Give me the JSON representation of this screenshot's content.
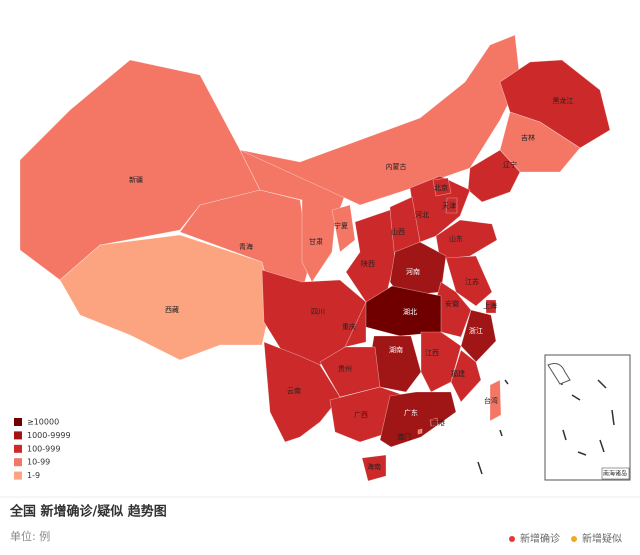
{
  "map": {
    "regions": [
      {
        "name": "新疆",
        "color": "#f47766"
      },
      {
        "name": "西藏",
        "color": "#fba47f"
      },
      {
        "name": "青海",
        "color": "#f47766"
      },
      {
        "name": "甘肃",
        "color": "#f47766"
      },
      {
        "name": "内蒙古",
        "color": "#f47766"
      },
      {
        "name": "黑龙江",
        "color": "#cc2a2a"
      },
      {
        "name": "吉林",
        "color": "#f47766"
      },
      {
        "name": "辽宁",
        "color": "#cc2a2a"
      },
      {
        "name": "河北",
        "color": "#cc2a2a"
      },
      {
        "name": "北京",
        "color": "#cc2a2a"
      },
      {
        "name": "天津",
        "color": "#cc2a2a"
      },
      {
        "name": "山西",
        "color": "#cc2a2a"
      },
      {
        "name": "山东",
        "color": "#cc2a2a"
      },
      {
        "name": "陕西",
        "color": "#cc2a2a"
      },
      {
        "name": "宁夏",
        "color": "#f47766"
      },
      {
        "name": "河南",
        "color": "#a01515"
      },
      {
        "name": "江苏",
        "color": "#cc2a2a"
      },
      {
        "name": "上海",
        "color": "#cc2a2a"
      },
      {
        "name": "安徽",
        "color": "#cc2a2a"
      },
      {
        "name": "湖北",
        "color": "#700000"
      },
      {
        "name": "重庆",
        "color": "#cc2a2a"
      },
      {
        "name": "四川",
        "color": "#cc2a2a"
      },
      {
        "name": "浙江",
        "color": "#a01515"
      },
      {
        "name": "湖南",
        "color": "#a01515"
      },
      {
        "name": "江西",
        "color": "#cc2a2a"
      },
      {
        "name": "福建",
        "color": "#cc2a2a"
      },
      {
        "name": "贵州",
        "color": "#cc2a2a"
      },
      {
        "name": "云南",
        "color": "#cc2a2a"
      },
      {
        "name": "广西",
        "color": "#cc2a2a"
      },
      {
        "name": "广东",
        "color": "#a01515"
      },
      {
        "name": "海南",
        "color": "#cc2a2a"
      },
      {
        "name": "台湾",
        "color": "#f47766"
      },
      {
        "name": "香港",
        "color": "#cc2a2a"
      },
      {
        "name": "澳门",
        "color": "#f47766"
      }
    ],
    "legend": [
      {
        "label": "≥10000",
        "color": "#700000"
      },
      {
        "label": "1000-9999",
        "color": "#a01515"
      },
      {
        "label": "100-999",
        "color": "#cc2a2a"
      },
      {
        "label": "10-99",
        "color": "#f47766"
      },
      {
        "label": "1-9",
        "color": "#fba47f"
      }
    ],
    "inset_label": "南海诸岛"
  },
  "trend": {
    "title": "全国 新增确诊/疑似 趋势图",
    "unit": "单位: 例",
    "legend": [
      {
        "name": "新增确诊",
        "color": "#e53935"
      },
      {
        "name": "新增疑似",
        "color": "#f5a623"
      }
    ]
  }
}
